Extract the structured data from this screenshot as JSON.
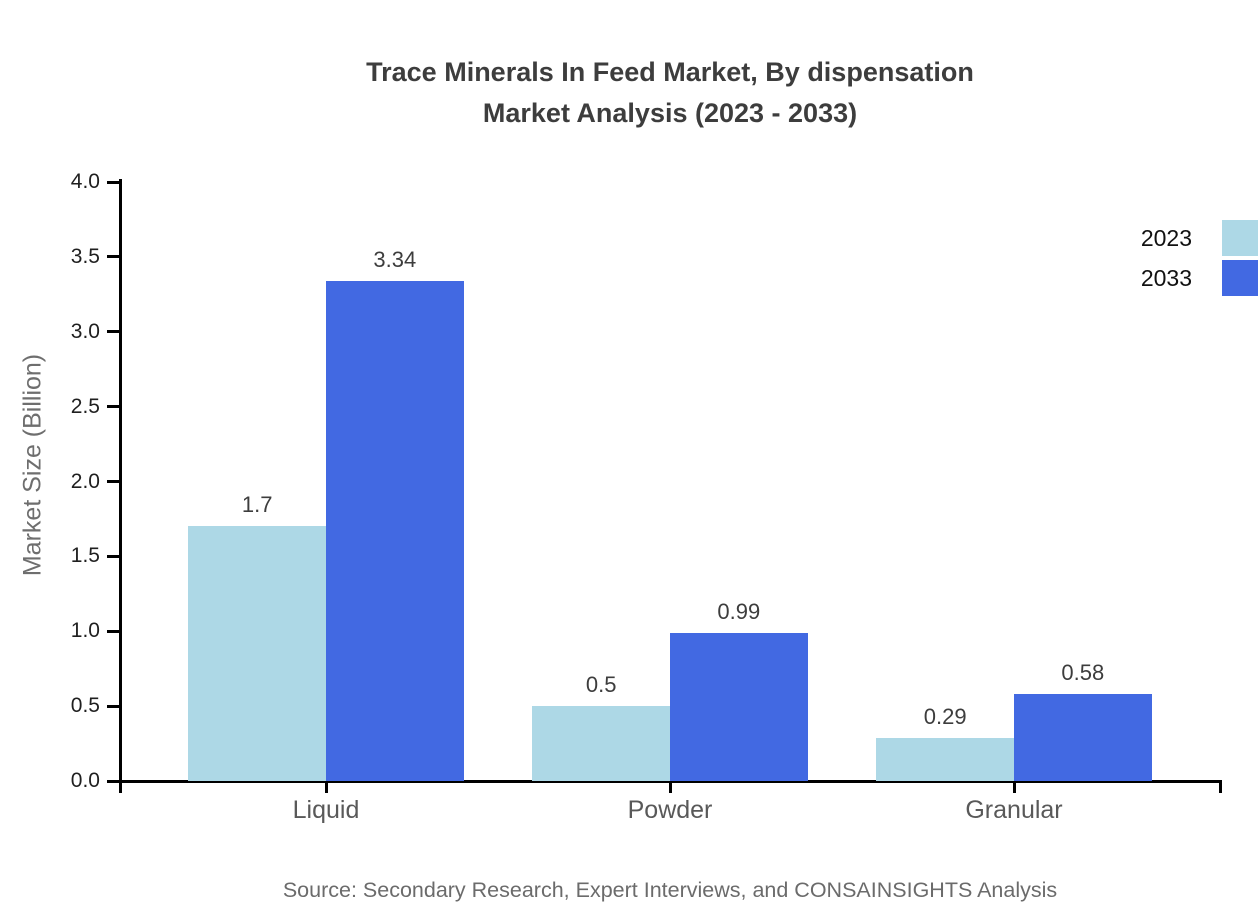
{
  "title": {
    "line1": "Trace Minerals In Feed Market, By dispensation",
    "line2": "Market Analysis (2023 - 2033)"
  },
  "source": "Source: Secondary Research, Expert Interviews, and CONSAINSIGHTS Analysis",
  "colors": {
    "series_2023": "#ADD8E6",
    "series_2033": "#4269E2",
    "axis": "#000000",
    "title_text": "#3d3d3d",
    "category_text": "#595959",
    "muted_text": "#6b6b6b"
  },
  "chart_data": {
    "type": "bar",
    "categories": [
      "Liquid",
      "Powder",
      "Granular"
    ],
    "series": [
      {
        "name": "2023",
        "color": "#ADD8E6",
        "values": [
          1.7,
          0.5,
          0.29
        ]
      },
      {
        "name": "2033",
        "color": "#4269E2",
        "values": [
          3.34,
          0.99,
          0.58
        ]
      }
    ],
    "value_labels": [
      [
        "1.7",
        "3.34"
      ],
      [
        "0.5",
        "0.99"
      ],
      [
        "0.29",
        "0.58"
      ]
    ],
    "title": "Trace Minerals In Feed Market, By dispensation Market Analysis (2023 - 2033)",
    "xlabel": "",
    "ylabel": "Market Size (Billion)",
    "ylim": [
      0,
      4
    ],
    "ytick_step": 0.5,
    "grid": false,
    "legend_position": "top-right"
  }
}
